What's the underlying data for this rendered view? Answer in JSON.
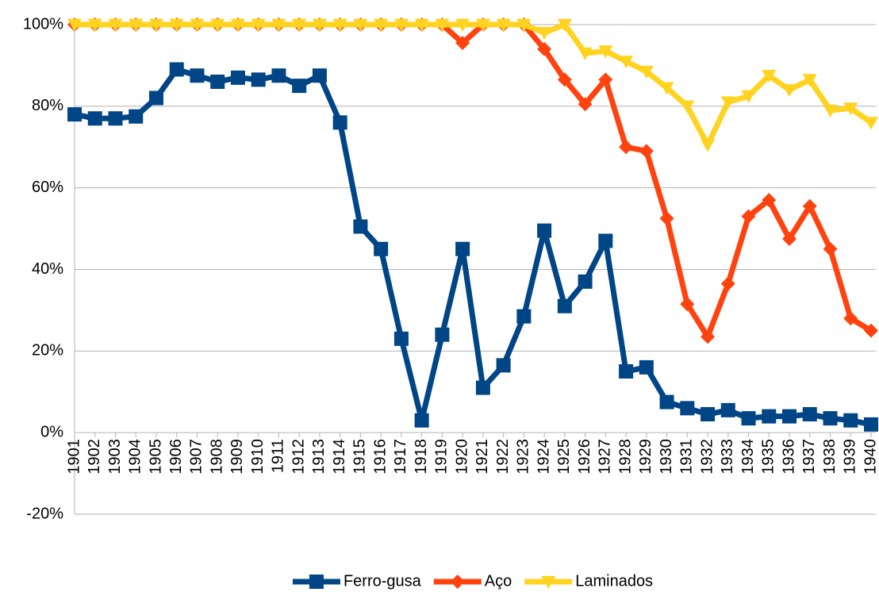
{
  "chart_data": {
    "type": "line",
    "categories": [
      "1901",
      "1902",
      "1903",
      "1904",
      "1905",
      "1906",
      "1907",
      "1908",
      "1909",
      "1910",
      "1911",
      "1912",
      "1913",
      "1914",
      "1915",
      "1916",
      "1917",
      "1918",
      "1919",
      "1920",
      "1921",
      "1922",
      "1923",
      "1924",
      "1925",
      "1926",
      "1927",
      "1928",
      "1929",
      "1930",
      "1931",
      "1932",
      "1933",
      "1934",
      "1935",
      "1936",
      "1937",
      "1938",
      "1939",
      "1940"
    ],
    "series": [
      {
        "name": "Ferro-gusa",
        "color": "#004586",
        "marker": "square",
        "values": [
          78,
          77,
          77,
          77.5,
          82,
          89,
          87.5,
          86,
          87,
          86.5,
          87.5,
          85,
          87.5,
          76,
          50.5,
          45,
          23,
          3,
          24,
          45,
          11,
          16.5,
          28.5,
          49.5,
          31,
          37,
          47,
          15,
          16,
          7.5,
          6,
          4.5,
          5.5,
          3.5,
          4,
          4,
          4.5,
          3.5,
          3,
          2
        ]
      },
      {
        "name": "Aço",
        "color": "#ff420e",
        "marker": "diamond",
        "values": [
          100,
          100,
          100,
          100,
          100,
          100,
          100,
          100,
          100,
          100,
          100,
          100,
          100,
          100,
          100,
          100,
          100,
          100,
          100,
          95.5,
          100,
          100,
          100,
          94,
          86.5,
          80.5,
          86.5,
          70,
          69,
          52.5,
          31.5,
          23.5,
          36.5,
          53,
          57,
          47.5,
          55.5,
          45,
          28,
          25
        ]
      },
      {
        "name": "Laminados",
        "color": "#ffd320",
        "marker": "triangle-down",
        "values": [
          100,
          100,
          100,
          100,
          100,
          100,
          100,
          100,
          100,
          100,
          100,
          100,
          100,
          100,
          100,
          100,
          100,
          100,
          100,
          100,
          100,
          100,
          100,
          98,
          100,
          93,
          93.5,
          91,
          88.5,
          84.5,
          80,
          70.5,
          81,
          82.5,
          87.5,
          84,
          86.5,
          79,
          79.5,
          76
        ]
      }
    ],
    "ylim": [
      -20,
      100
    ],
    "yticks": [
      {
        "value": -20,
        "label": "-20%"
      },
      {
        "value": 0,
        "label": "0%"
      },
      {
        "value": 20,
        "label": "20%"
      },
      {
        "value": 40,
        "label": "40%"
      },
      {
        "value": 60,
        "label": "60%"
      },
      {
        "value": 80,
        "label": "80%"
      },
      {
        "value": 100,
        "label": "100%"
      }
    ],
    "grid": true,
    "legend": "bottom"
  }
}
